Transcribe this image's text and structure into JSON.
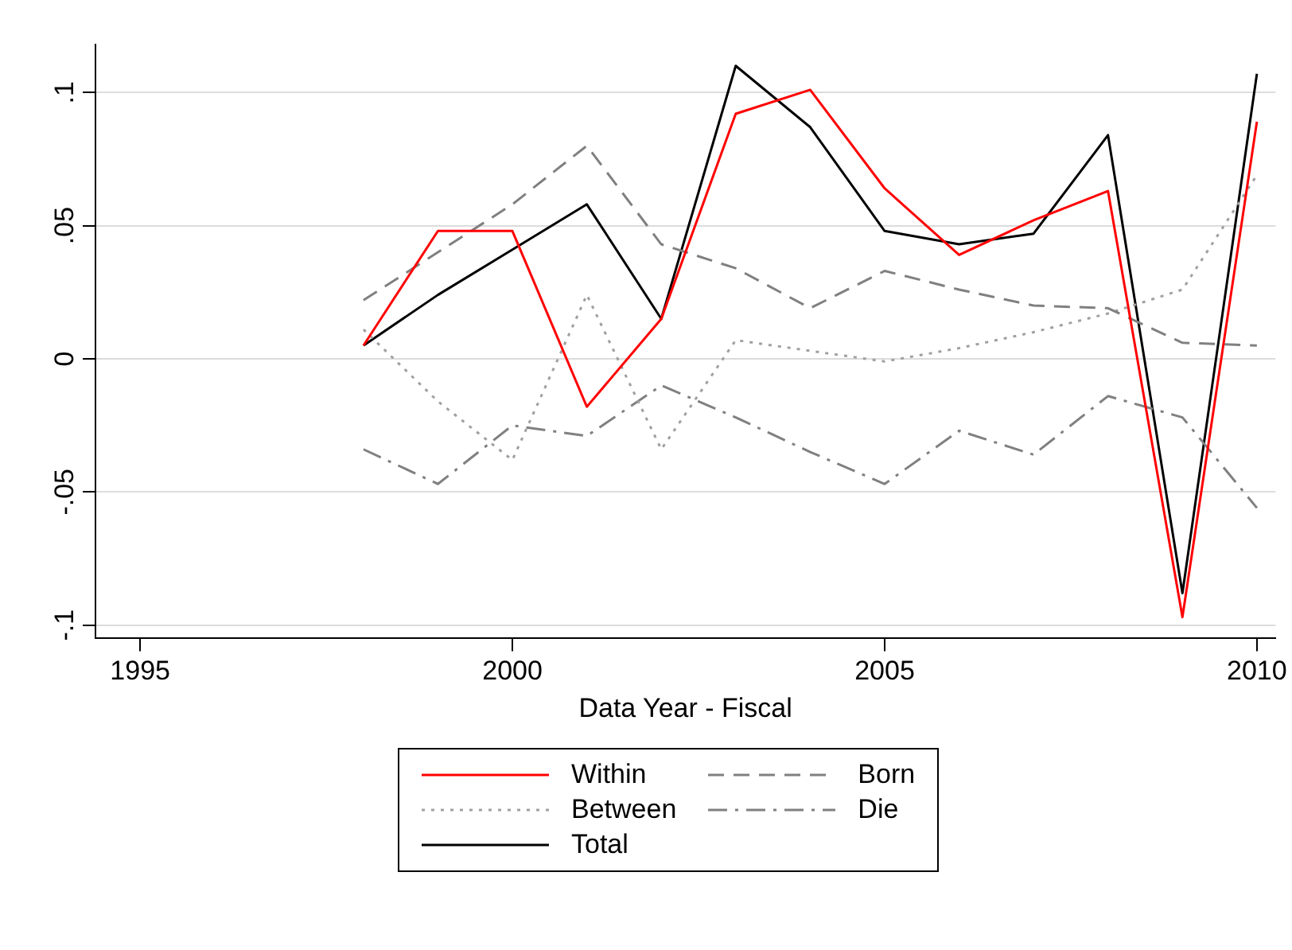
{
  "chart_data": {
    "type": "line",
    "xlabel": "Data Year - Fiscal",
    "x": [
      1998,
      1999,
      2000,
      2001,
      2002,
      2003,
      2004,
      2005,
      2006,
      2007,
      2008,
      2009,
      2010
    ],
    "xlim": [
      1994.4,
      2010.25
    ],
    "xticks": [
      1995,
      2000,
      2005,
      2010
    ],
    "ylim": [
      -0.105,
      0.118
    ],
    "yticks": [
      {
        "value": -0.1,
        "label": "-.1"
      },
      {
        "value": -0.05,
        "label": "-.05"
      },
      0,
      {
        "value": 0.05,
        "label": ".05"
      },
      {
        "value": 0.1,
        "label": ".1"
      }
    ],
    "grid": "y",
    "legend": "bottom",
    "marker": "none",
    "series": [
      {
        "name": "Within",
        "color": "#ff0000",
        "line_style": "solid",
        "values": [
          0.005,
          0.048,
          0.048,
          -0.018,
          0.015,
          0.092,
          0.101,
          0.064,
          0.039,
          0.052,
          0.063,
          -0.097,
          0.089
        ]
      },
      {
        "name": "Born",
        "color": "#808080",
        "line_style": "dashed",
        "values": [
          0.022,
          0.04,
          0.058,
          0.08,
          0.043,
          0.034,
          0.019,
          0.033,
          0.026,
          0.02,
          0.019,
          0.006,
          0.005
        ]
      },
      {
        "name": "Between",
        "color": "#a0a0a0",
        "line_style": "dotted",
        "values": [
          0.011,
          -0.016,
          -0.038,
          0.024,
          -0.034,
          0.007,
          0.003,
          -0.001,
          0.004,
          0.01,
          0.017,
          0.026,
          0.069
        ]
      },
      {
        "name": "Die",
        "color": "#808080",
        "line_style": "dashdot",
        "values": [
          -0.034,
          -0.047,
          -0.025,
          -0.029,
          -0.01,
          -0.022,
          -0.035,
          -0.047,
          -0.027,
          -0.036,
          -0.014,
          -0.022,
          -0.056
        ]
      },
      {
        "name": "Total",
        "color": "#000000",
        "line_style": "solid",
        "values": [
          0.005,
          0.024,
          0.041,
          0.058,
          0.015,
          0.11,
          0.087,
          0.048,
          0.043,
          0.047,
          0.084,
          -0.088,
          0.107
        ]
      }
    ]
  }
}
